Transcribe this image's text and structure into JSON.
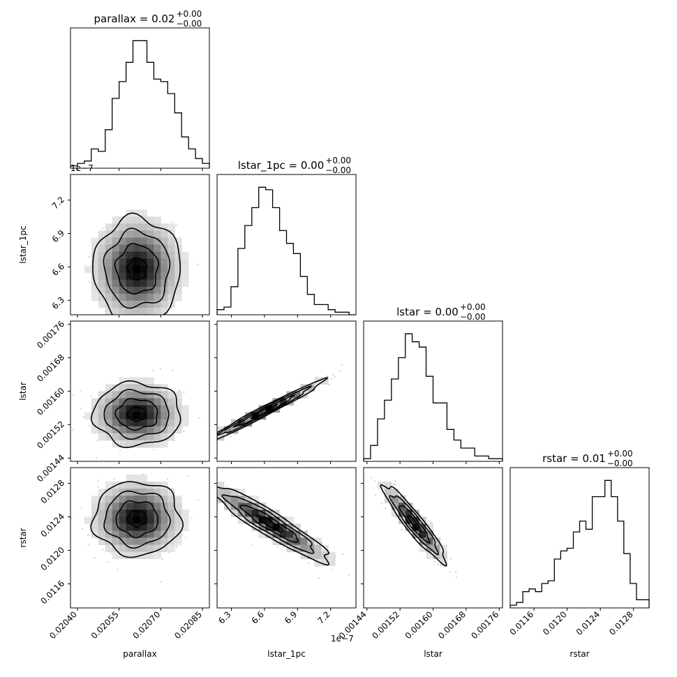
{
  "chart_data": {
    "type": "corner",
    "parameters": [
      "parallax",
      "lstar_1pc",
      "lstar",
      "rstar"
    ],
    "titles": [
      {
        "name": "parallax = 0.02",
        "sup": "+0.00",
        "sub": "−0.00"
      },
      {
        "name": "lstar_1pc = 0.00",
        "sup": "+0.00",
        "sub": "−0.00"
      },
      {
        "name": "lstar = 0.00",
        "sup": "+0.00",
        "sub": "−0.00"
      },
      {
        "name": "rstar = 0.01",
        "sup": "+0.00",
        "sub": "−0.00"
      }
    ],
    "axis_labels": [
      "parallax",
      "lstar_1pc",
      "lstar",
      "rstar"
    ],
    "offset_label": "1e−7",
    "ranges": [
      [
        0.020375,
        0.020875
      ],
      [
        6.17e-07,
        7.43e-07
      ],
      [
        0.001432,
        0.001768
      ],
      [
        0.011313,
        0.012988
      ]
    ],
    "ticks": [
      [
        0.0204,
        0.02055,
        0.0207,
        0.02085
      ],
      [
        6.3,
        6.6,
        6.9,
        7.2
      ],
      [
        0.00144,
        0.00152,
        0.0016,
        0.00168,
        0.00176
      ],
      [
        0.0116,
        0.012,
        0.0124,
        0.0128
      ]
    ],
    "tick_labels": [
      [
        "0.02040",
        "0.02055",
        "0.02070",
        "0.02085"
      ],
      [
        "6.3",
        "6.6",
        "6.9",
        "7.2"
      ],
      [
        "0.00144",
        "0.00152",
        "0.00160",
        "0.00168",
        "0.00176"
      ],
      [
        "0.0116",
        "0.0120",
        "0.0124",
        "0.0128"
      ]
    ],
    "histograms": [
      {
        "param": "parallax",
        "edges_range": [
          0.020375,
          0.020875
        ],
        "counts": [
          1,
          2,
          3,
          8,
          7,
          16,
          29,
          36,
          44,
          53,
          53,
          44,
          37,
          36,
          31,
          23,
          13,
          8,
          4,
          2
        ]
      },
      {
        "param": "lstar_1pc",
        "edges_range": [
          6.17e-07,
          7.43e-07
        ],
        "counts": [
          2,
          3,
          11,
          26,
          35,
          42,
          50,
          49,
          42,
          33,
          28,
          24,
          15,
          8,
          4,
          4,
          2,
          1,
          1,
          0
        ]
      },
      {
        "param": "lstar",
        "edges_range": [
          0.001432,
          0.001768
        ],
        "counts": [
          1,
          6,
          16,
          23,
          31,
          39,
          48,
          45,
          43,
          32,
          22,
          22,
          12,
          8,
          5,
          5,
          2,
          2,
          1,
          1
        ]
      },
      {
        "param": "rstar",
        "edges_range": [
          0.011313,
          0.012988
        ],
        "counts": [
          1,
          2,
          6,
          7,
          6,
          9,
          10,
          18,
          21,
          22,
          28,
          32,
          29,
          41,
          41,
          47,
          41,
          32,
          20,
          9,
          3,
          3
        ]
      }
    ],
    "pairs": [
      {
        "x": "parallax",
        "y": "lstar_1pc",
        "center": [
          0.020615,
          6.58e-07
        ],
        "spread": [
          7.5e-05,
          2.2e-08
        ],
        "rho": 0.0
      },
      {
        "x": "parallax",
        "y": "lstar",
        "center": [
          0.020615,
          0.001545
        ],
        "spread": [
          7.5e-05,
          3.6e-05
        ],
        "rho": 0.0
      },
      {
        "x": "parallax",
        "y": "rstar",
        "center": [
          0.020615,
          0.01238
        ],
        "spread": [
          7.5e-05,
          0.00021
        ],
        "rho": 0.0
      },
      {
        "x": "lstar_1pc",
        "y": "lstar",
        "center": [
          6.6e-07,
          0.001552
        ],
        "spread": [
          2.6e-08,
          3.6e-05
        ],
        "rho": 0.985
      },
      {
        "x": "lstar_1pc",
        "y": "rstar",
        "center": [
          6.65e-07,
          0.01232
        ],
        "spread": [
          2.6e-08,
          0.00022
        ],
        "rho": -0.93
      },
      {
        "x": "lstar",
        "y": "rstar",
        "center": [
          0.001555,
          0.01232
        ],
        "spread": [
          3.6e-05,
          0.00022
        ],
        "rho": -0.93
      }
    ]
  }
}
